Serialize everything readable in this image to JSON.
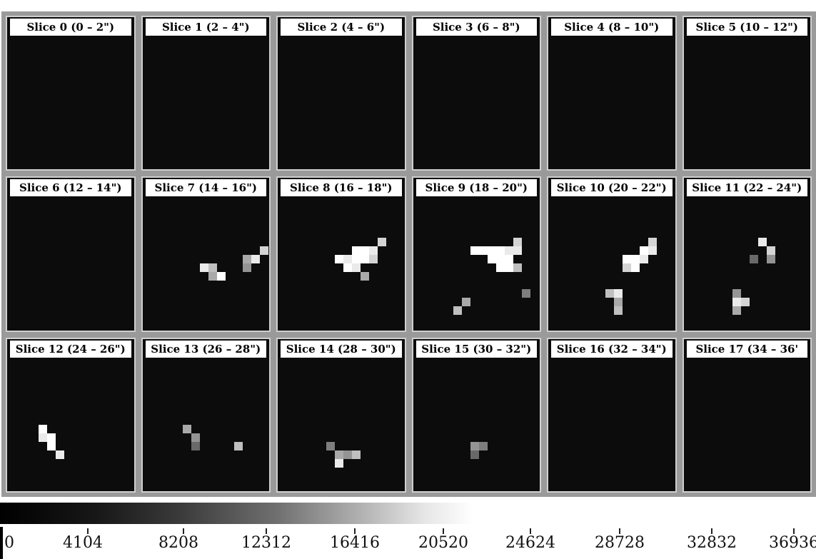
{
  "panels": [
    {
      "label": "Slice 0 (0 – 2\")",
      "pixels": []
    },
    {
      "label": "Slice 1 (2 – 4\")",
      "pixels": []
    },
    {
      "label": "Slice 2 (4 – 6\")",
      "pixels": []
    },
    {
      "label": "Slice 3 (6 – 8\")",
      "pixels": []
    },
    {
      "label": "Slice 4 (8 – 10\")",
      "pixels": []
    },
    {
      "label": "Slice 5 (10 – 12\")",
      "pixels": []
    },
    {
      "label": "Slice 6 (12 – 14\")",
      "pixels": []
    },
    {
      "label": "Slice 7 (14 – 16\")",
      "pixels": [
        [
          5,
          4,
          0.9
        ],
        [
          6,
          4,
          0.7
        ],
        [
          7,
          5,
          1.0
        ],
        [
          6,
          5,
          0.6
        ],
        [
          11,
          3,
          0.9
        ],
        [
          10,
          3,
          0.6
        ],
        [
          10,
          4,
          0.5
        ],
        [
          12,
          2,
          0.8
        ]
      ]
    },
    {
      "label": "Slice 8 (16 – 18\")",
      "pixels": [
        [
          5,
          3,
          1.0
        ],
        [
          6,
          3,
          0.9
        ],
        [
          7,
          2,
          1.0
        ],
        [
          8,
          2,
          1.0
        ],
        [
          9,
          2,
          0.9
        ],
        [
          10,
          1,
          0.8
        ],
        [
          6,
          4,
          1.0
        ],
        [
          7,
          3,
          1.0
        ],
        [
          8,
          3,
          1.0
        ],
        [
          9,
          3,
          0.8
        ],
        [
          7,
          4,
          0.9
        ],
        [
          8,
          5,
          0.6
        ]
      ]
    },
    {
      "label": "Slice 9 (18 – 20\")",
      "pixels": [
        [
          5,
          2,
          1.0
        ],
        [
          6,
          2,
          1.0
        ],
        [
          7,
          2,
          1.0
        ],
        [
          8,
          2,
          1.0
        ],
        [
          9,
          2,
          0.9
        ],
        [
          10,
          1,
          0.8
        ],
        [
          7,
          3,
          1.0
        ],
        [
          8,
          3,
          1.0
        ],
        [
          9,
          3,
          1.0
        ],
        [
          10,
          2,
          0.9
        ],
        [
          8,
          4,
          1.0
        ],
        [
          9,
          4,
          1.0
        ],
        [
          10,
          4,
          0.7
        ],
        [
          4,
          8,
          0.6
        ],
        [
          3,
          9,
          0.7
        ],
        [
          11,
          7,
          0.4
        ]
      ]
    },
    {
      "label": "Slice 10 (20 – 22\")",
      "pixels": [
        [
          7,
          3,
          1.0
        ],
        [
          8,
          3,
          1.0
        ],
        [
          9,
          2,
          1.0
        ],
        [
          10,
          1,
          0.8
        ],
        [
          8,
          4,
          1.0
        ],
        [
          9,
          3,
          0.9
        ],
        [
          10,
          2,
          0.9
        ],
        [
          7,
          4,
          0.8
        ],
        [
          6,
          7,
          0.9
        ],
        [
          5,
          7,
          0.7
        ],
        [
          6,
          8,
          0.6
        ],
        [
          6,
          9,
          0.7
        ]
      ]
    },
    {
      "label": "Slice 11 (22 – 24\")",
      "pixels": [
        [
          7,
          1,
          0.9
        ],
        [
          8,
          2,
          0.8
        ],
        [
          8,
          3,
          0.5
        ],
        [
          6,
          3,
          0.3
        ],
        [
          4,
          7,
          0.5
        ],
        [
          4,
          8,
          0.9
        ],
        [
          5,
          8,
          0.8
        ],
        [
          4,
          9,
          0.6
        ]
      ]
    },
    {
      "label": "Slice 12 (24 – 26\")",
      "pixels": [
        [
          2,
          4,
          1.0
        ],
        [
          2,
          5,
          0.9
        ],
        [
          3,
          5,
          1.0
        ],
        [
          3,
          6,
          1.0
        ],
        [
          4,
          7,
          0.9
        ]
      ]
    },
    {
      "label": "Slice 13 (26 – 28\")",
      "pixels": [
        [
          3,
          4,
          0.6
        ],
        [
          4,
          5,
          0.5
        ],
        [
          4,
          6,
          0.3
        ],
        [
          9,
          6,
          0.7
        ]
      ]
    },
    {
      "label": "Slice 14 (28 – 30\")",
      "pixels": [
        [
          4,
          6,
          0.4
        ],
        [
          5,
          7,
          0.6
        ],
        [
          6,
          7,
          0.5
        ],
        [
          5,
          8,
          0.9
        ],
        [
          7,
          7,
          0.7
        ]
      ]
    },
    {
      "label": "Slice 15 (30 – 32\")",
      "pixels": [
        [
          5,
          6,
          0.5
        ],
        [
          6,
          6,
          0.4
        ],
        [
          5,
          7,
          0.3
        ]
      ]
    },
    {
      "label": "Slice 16 (32 – 34\")",
      "pixels": []
    },
    {
      "label": "Slice 17 (34 – 36'",
      "pixels": []
    }
  ],
  "colorbar": {
    "ticks": [
      "0",
      "4104",
      "8208",
      "12312",
      "16416",
      "20520",
      "24624",
      "28728",
      "32832",
      "36936"
    ]
  }
}
